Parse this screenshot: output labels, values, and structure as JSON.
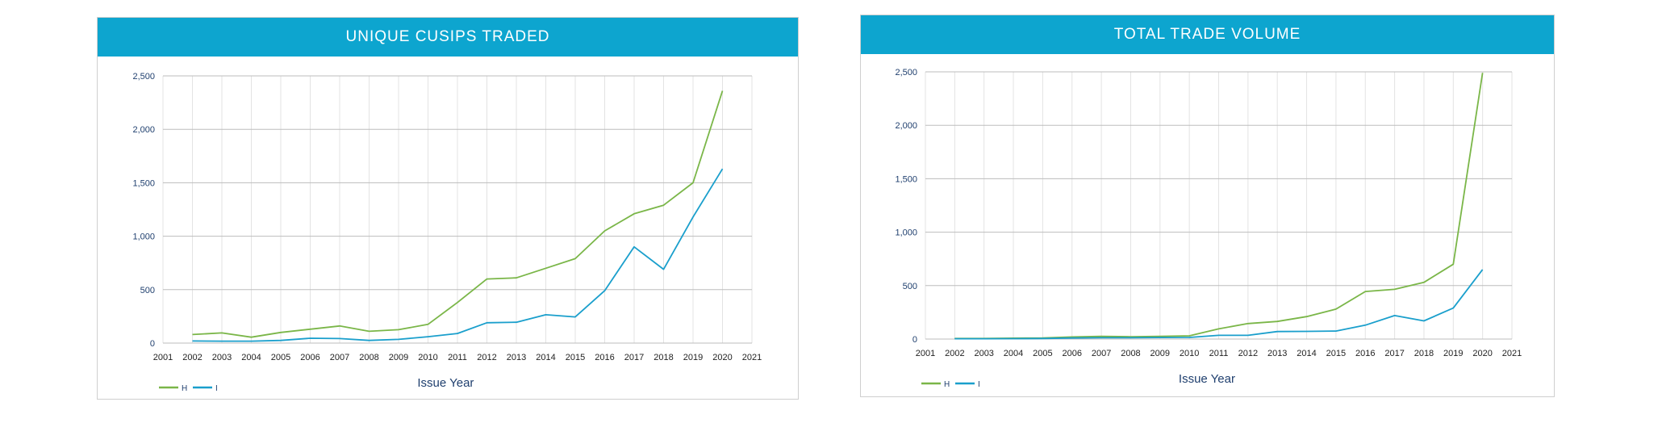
{
  "colors": {
    "header_bg": "#0da5cf",
    "series_h": "#7ab648",
    "series_i": "#1a9fcc",
    "grid_major": "#bdbdbd",
    "grid_minor": "#e3e3e3"
  },
  "chart_data": [
    {
      "type": "line",
      "title": "UNIQUE CUSIPS TRADED",
      "xlabel": "Issue Year",
      "ylabel": "",
      "x_ticks": [
        "2001",
        "2002",
        "2003",
        "2004",
        "2005",
        "2006",
        "2007",
        "2008",
        "2009",
        "2010",
        "2011",
        "2012",
        "2013",
        "2014",
        "2015",
        "2016",
        "2017",
        "2018",
        "2019",
        "2020",
        "2021"
      ],
      "y_ticks": [
        "0",
        "500",
        "1,000",
        "1,500",
        "2,000",
        "2,500"
      ],
      "xlim": [
        2001,
        2021
      ],
      "ylim": [
        0,
        2500
      ],
      "grid": true,
      "legend_position": "bottom-left",
      "series": [
        {
          "name": "H",
          "color": "#7ab648",
          "x": [
            2002,
            2003,
            2004,
            2005,
            2006,
            2007,
            2008,
            2009,
            2010,
            2011,
            2012,
            2013,
            2014,
            2015,
            2016,
            2017,
            2018,
            2019,
            2020
          ],
          "values": [
            80,
            95,
            55,
            100,
            130,
            160,
            110,
            125,
            175,
            380,
            600,
            610,
            700,
            790,
            1050,
            1210,
            1290,
            1500,
            2360
          ]
        },
        {
          "name": "I",
          "color": "#1a9fcc",
          "x": [
            2002,
            2003,
            2004,
            2005,
            2006,
            2007,
            2008,
            2009,
            2010,
            2011,
            2012,
            2013,
            2014,
            2015,
            2016,
            2017,
            2018,
            2019,
            2020
          ],
          "values": [
            20,
            18,
            18,
            25,
            45,
            42,
            25,
            35,
            60,
            90,
            190,
            195,
            265,
            245,
            490,
            900,
            690,
            1180,
            1630
          ]
        }
      ]
    },
    {
      "type": "line",
      "title": "TOTAL TRADE VOLUME",
      "xlabel": "Issue Year",
      "ylabel": "",
      "x_ticks": [
        "2001",
        "2002",
        "2003",
        "2004",
        "2005",
        "2006",
        "2007",
        "2008",
        "2009",
        "2010",
        "2011",
        "2012",
        "2013",
        "2014",
        "2015",
        "2016",
        "2017",
        "2018",
        "2019",
        "2020",
        "2021"
      ],
      "y_ticks": [
        "0",
        "500",
        "1,000",
        "1,500",
        "2,000",
        "2,500"
      ],
      "xlim": [
        2001,
        2021
      ],
      "ylim": [
        0,
        2500
      ],
      "grid": true,
      "legend_position": "bottom-left",
      "series": [
        {
          "name": "H",
          "color": "#7ab648",
          "x": [
            2002,
            2003,
            2004,
            2005,
            2006,
            2007,
            2008,
            2009,
            2010,
            2011,
            2012,
            2013,
            2014,
            2015,
            2016,
            2017,
            2018,
            2019,
            2020
          ],
          "values": [
            5,
            5,
            8,
            10,
            20,
            25,
            22,
            25,
            30,
            95,
            145,
            165,
            210,
            280,
            445,
            465,
            530,
            700,
            2490
          ]
        },
        {
          "name": "I",
          "color": "#1a9fcc",
          "x": [
            2002,
            2003,
            2004,
            2005,
            2006,
            2007,
            2008,
            2009,
            2010,
            2011,
            2012,
            2013,
            2014,
            2015,
            2016,
            2017,
            2018,
            2019,
            2020
          ],
          "values": [
            3,
            3,
            4,
            5,
            10,
            12,
            12,
            14,
            15,
            35,
            35,
            70,
            72,
            75,
            130,
            220,
            170,
            290,
            650
          ]
        }
      ]
    }
  ]
}
